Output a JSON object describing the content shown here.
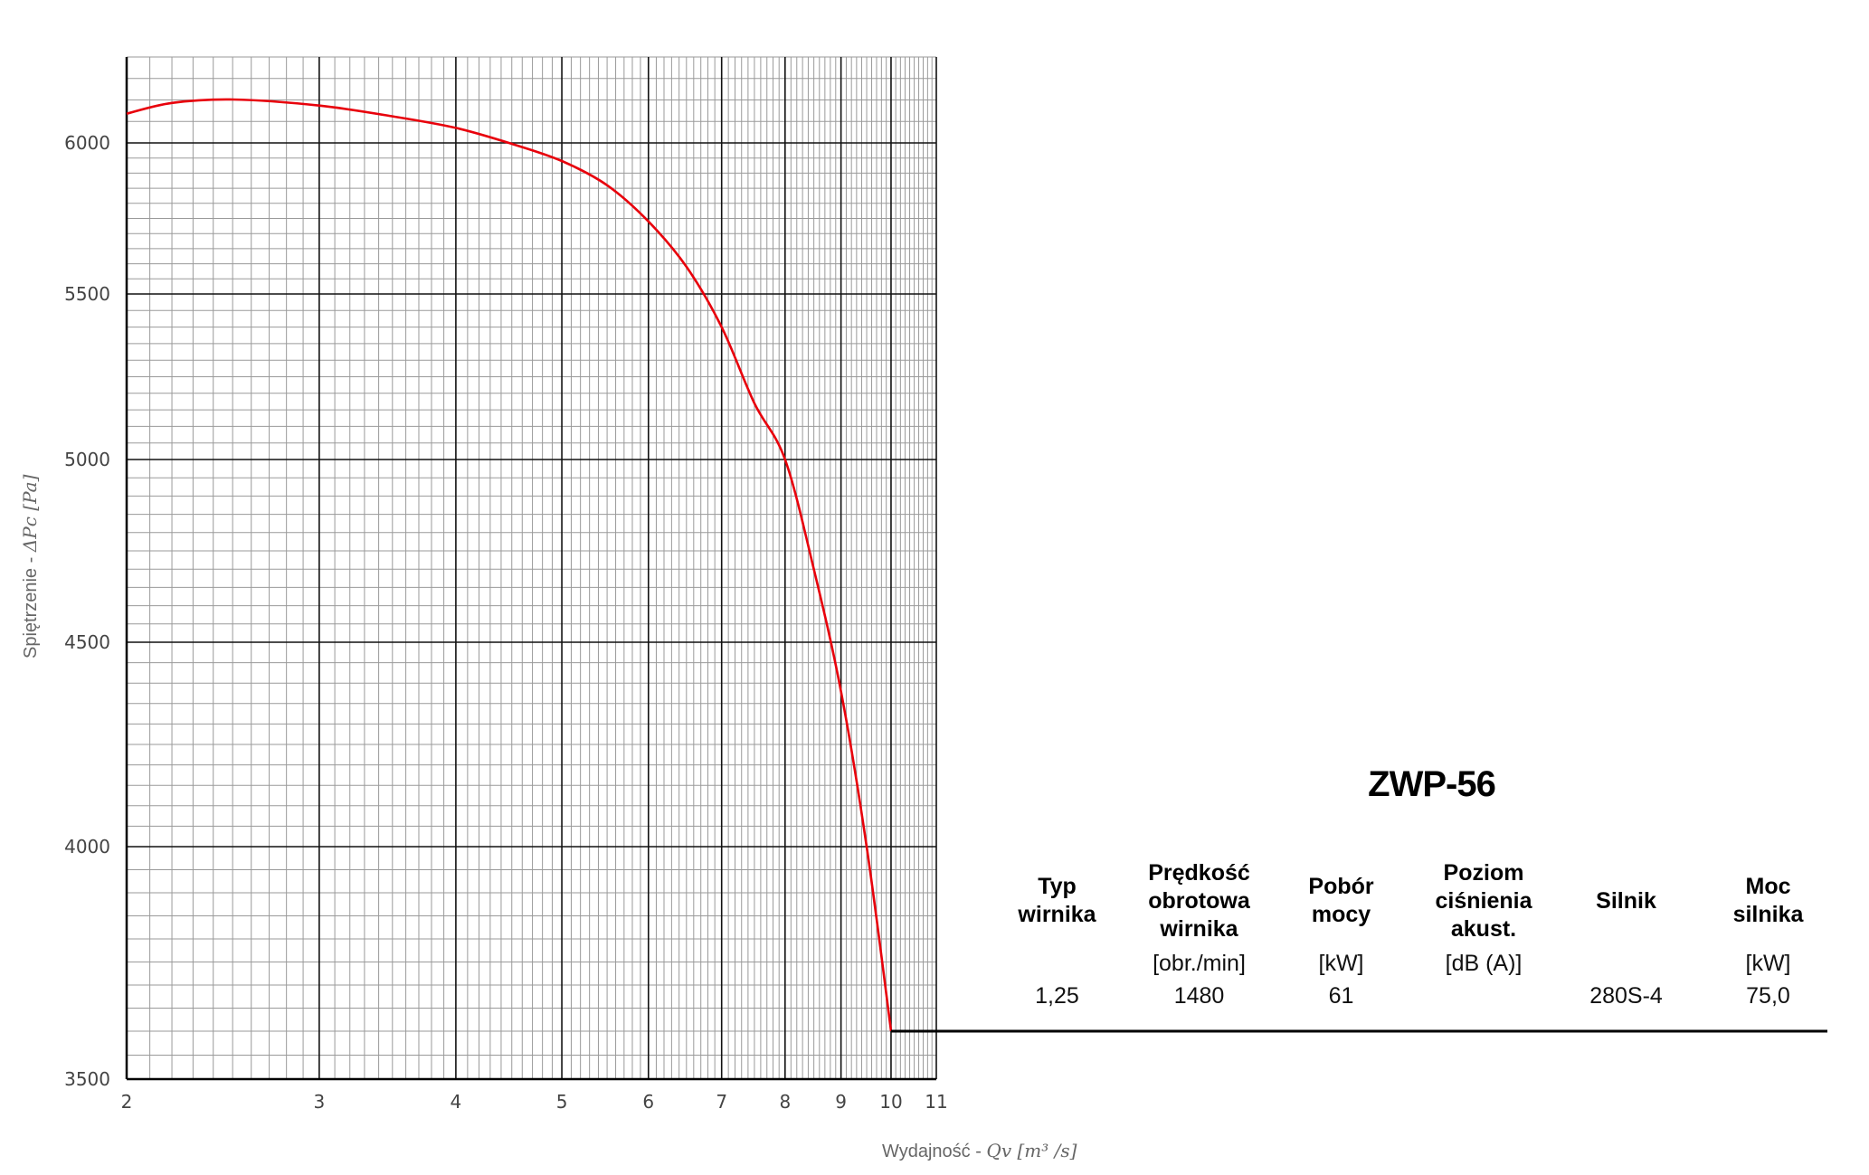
{
  "chart_data": {
    "type": "line",
    "x_scale": "log",
    "y_scale": "linear-with-axis-break",
    "xlim": [
      2,
      11
    ],
    "ylim": [
      3500,
      6200
    ],
    "x_ticks": [
      2,
      3,
      4,
      5,
      6,
      7,
      8,
      9,
      10,
      11
    ],
    "y_ticks": [
      3500,
      4000,
      4500,
      5000,
      5500,
      6000
    ],
    "x_tick_labels": [
      "2",
      "3",
      "4",
      "5",
      "6",
      "7",
      "8",
      "9",
      "10",
      "11"
    ],
    "y_tick_labels": [
      "3500",
      "4000",
      "4500",
      "5000",
      "5500",
      "6000"
    ],
    "xlabel_text": "Wydajność - ",
    "xlabel_math": "Qv [m³ /s]",
    "ylabel_text": "Spiętrzenie - ",
    "ylabel_math": "ΔPc [Pa]",
    "grid": true,
    "series": [
      {
        "color": "#e8000b",
        "x": [
          2.0,
          2.2,
          2.5,
          3.0,
          3.5,
          4.0,
          4.5,
          5.0,
          5.5,
          6.0,
          6.5,
          7.0,
          7.5,
          8.0,
          8.5,
          9.0,
          9.5,
          10.0
        ],
        "y": [
          6068,
          6093,
          6101,
          6087,
          6062,
          6035,
          5997,
          5940,
          5860,
          5740,
          5590,
          5400,
          5170,
          5000,
          4700,
          4380,
          4000,
          3600
        ]
      }
    ]
  },
  "info": {
    "model": "ZWP-56",
    "headers": [
      [
        "Typ",
        "wirnika"
      ],
      [
        "Prędkość",
        "obrotowa",
        "wirnika"
      ],
      [
        "Pobór",
        "mocy"
      ],
      [
        "Poziom",
        "ciśnienia",
        "akust."
      ],
      [
        "Silnik"
      ],
      [
        "Moc",
        "silnika"
      ]
    ],
    "units": [
      "",
      "[obr./min]",
      "[kW]",
      "[dB (A)]",
      "",
      "[kW]"
    ],
    "values": [
      "1,25",
      "1480",
      "61",
      "",
      "280S-4",
      "75,0"
    ]
  }
}
